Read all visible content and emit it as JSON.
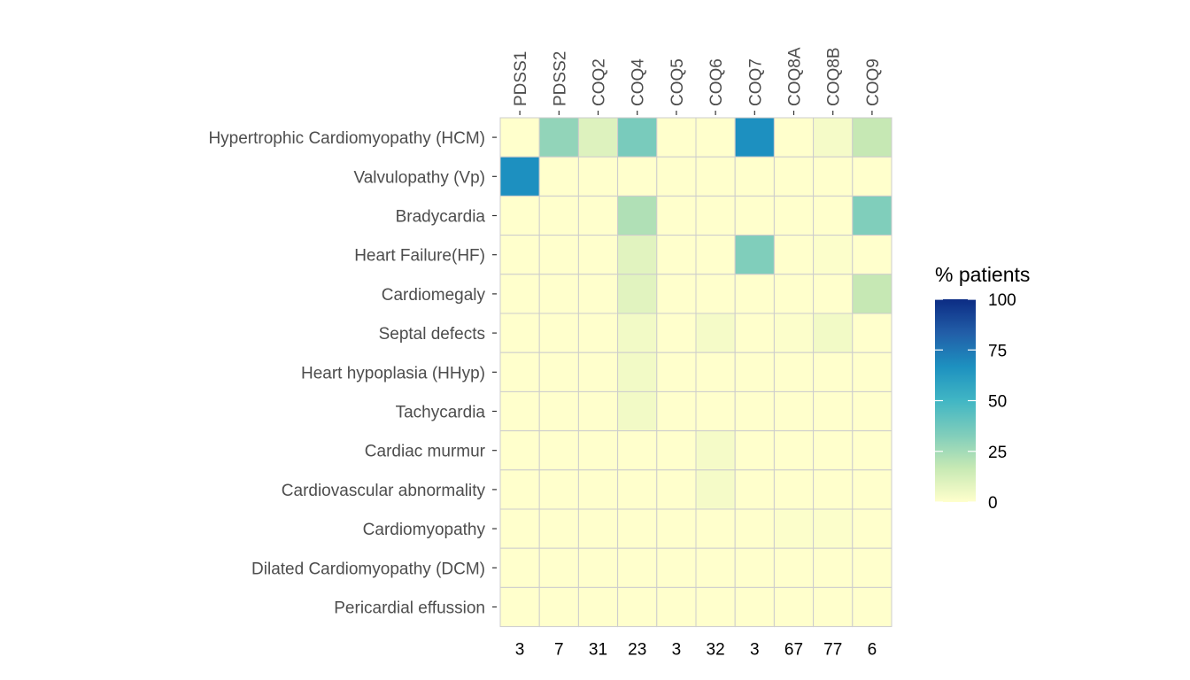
{
  "chart_data": {
    "type": "heatmap",
    "columns": [
      "PDSS1",
      "PDSS2",
      "COQ2",
      "COQ4",
      "COQ5",
      "COQ6",
      "COQ7",
      "COQ8A",
      "COQ8B",
      "COQ9"
    ],
    "rows": [
      "Hypertrophic Cardiomyopathy (HCM)",
      "Valvulopathy (Vp)",
      "Bradycardia",
      "Heart Failure(HF)",
      "Cardiomegaly",
      "Septal defects",
      "Heart hypoplasia (HHyp)",
      "Tachycardia",
      "Cardiac murmur",
      "Cardiovascular abnormality",
      "Cardiomyopathy",
      "Dilated Cardiomyopathy (DCM)",
      "Pericardial effussion"
    ],
    "values": [
      [
        0,
        29,
        10,
        35,
        0,
        0,
        67,
        0,
        3,
        17
      ],
      [
        67,
        0,
        0,
        0,
        0,
        0,
        0,
        0,
        0,
        0
      ],
      [
        0,
        0,
        0,
        22,
        0,
        0,
        0,
        0,
        0,
        33
      ],
      [
        0,
        0,
        0,
        9,
        0,
        0,
        33,
        0,
        1,
        0
      ],
      [
        0,
        0,
        0,
        9,
        0,
        0,
        0,
        0,
        0,
        17
      ],
      [
        0,
        0,
        0,
        4,
        0,
        3,
        0,
        1,
        4,
        0
      ],
      [
        0,
        0,
        0,
        4,
        0,
        0,
        0,
        0,
        0,
        0
      ],
      [
        0,
        0,
        0,
        4,
        0,
        0,
        0,
        0,
        0,
        0
      ],
      [
        0,
        0,
        0,
        0,
        0,
        3,
        0,
        0,
        0,
        0
      ],
      [
        0,
        0,
        0,
        0,
        0,
        3,
        0,
        0,
        0,
        0
      ],
      [
        0,
        0,
        0,
        0,
        0,
        0,
        0,
        1,
        1,
        0
      ],
      [
        0,
        0,
        0,
        0,
        0,
        0,
        0,
        0,
        0,
        0
      ],
      [
        0,
        0,
        0,
        0,
        0,
        0,
        0,
        0,
        0,
        0
      ]
    ],
    "column_counts": [
      "3",
      "7",
      "31",
      "23",
      "3",
      "32",
      "3",
      "67",
      "77",
      "6"
    ],
    "legend": {
      "title": "% patients",
      "ticks": [
        "0",
        "25",
        "50",
        "75",
        "100"
      ],
      "range": [
        0,
        100
      ],
      "colors": [
        "#ffffcc",
        "#c7e9b4",
        "#7fcdbb",
        "#41b6c4",
        "#1d91c0",
        "#225ea8",
        "#0c2c84"
      ],
      "placement": "right"
    },
    "grid_color": "#cccccc"
  }
}
